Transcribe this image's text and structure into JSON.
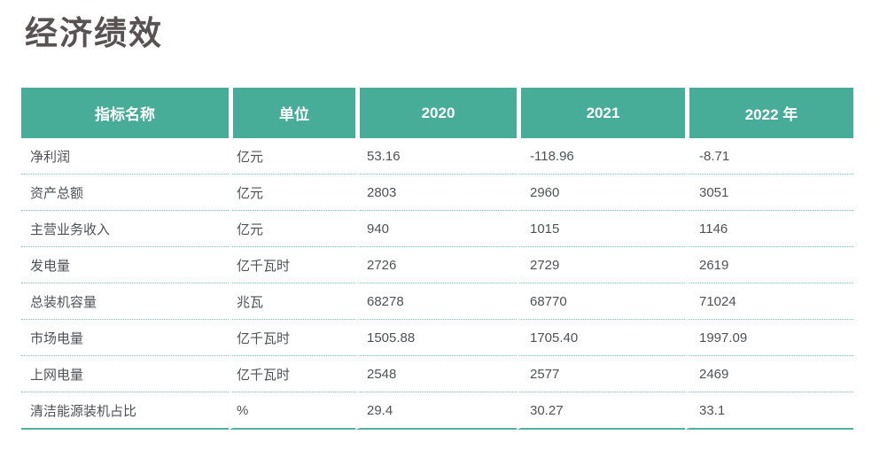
{
  "page": {
    "title": "经济绩效"
  },
  "table": {
    "headers": [
      "指标名称",
      "单位",
      "2020",
      "2021",
      "2022 年"
    ],
    "rows": [
      [
        "净利润",
        "亿元",
        "53.16",
        "-118.96",
        "-8.71"
      ],
      [
        "资产总额",
        "亿元",
        "2803",
        "2960",
        "3051"
      ],
      [
        "主营业务收入",
        "亿元",
        "940",
        "1015",
        "1146"
      ],
      [
        "发电量",
        "亿千瓦时",
        "2726",
        "2729",
        "2619"
      ],
      [
        "总装机容量",
        "兆瓦",
        "68278",
        "68770",
        "71024"
      ],
      [
        "市场电量",
        "亿千瓦时",
        "1505.88",
        "1705.40",
        "1997.09"
      ],
      [
        "上网电量",
        "亿千瓦时",
        "2548",
        "2577",
        "2469"
      ],
      [
        "清洁能源装机占比",
        "%",
        "29.4",
        "30.27",
        "33.1"
      ]
    ]
  },
  "colors": {
    "header_bg": "#47AD99",
    "header_text": "#FFFFFF",
    "row_divider": "#7CC3B3",
    "bottom_border": "#4FB2A0",
    "body_text": "#4E5256",
    "title_text": "#585252",
    "page_bg": "#FFFFFF"
  }
}
